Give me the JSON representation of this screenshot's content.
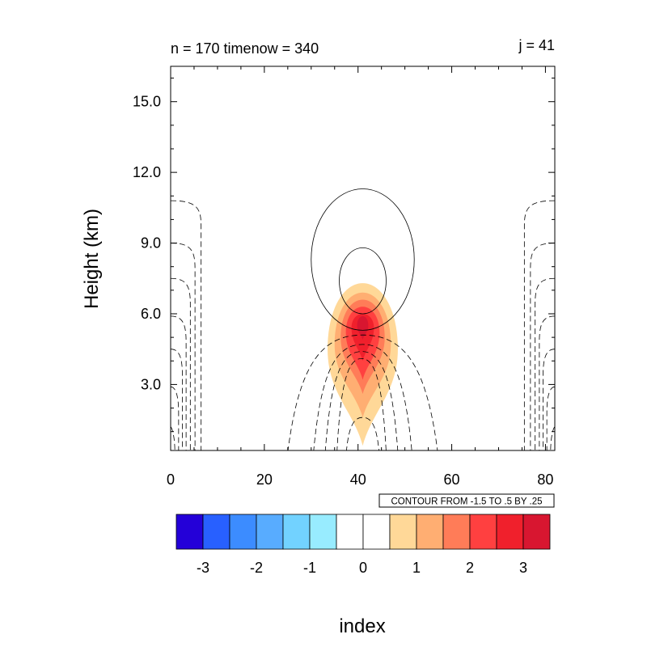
{
  "chart_data": {
    "type": "contour",
    "title_left": "n = 170 timenow = 340",
    "title_right": "j = 41",
    "ylabel": "Height (km)",
    "xlabel": "index",
    "xlim": [
      0,
      82
    ],
    "ylim": [
      0.2,
      16.5
    ],
    "x_ticks": [
      0,
      20,
      40,
      60,
      80
    ],
    "x_tick_labels": [
      "0",
      "20",
      "40",
      "60",
      "80"
    ],
    "y_ticks": [
      3.0,
      6.0,
      9.0,
      12.0,
      15.0
    ],
    "y_tick_labels": [
      "3.0",
      "6.0",
      "9.0",
      "12.0",
      "15.0"
    ],
    "contour_info": "CONTOUR FROM -1.5 TO .5 BY .25",
    "colorbar": {
      "colors": [
        "#2400d8",
        "#2860ff",
        "#3c8cff",
        "#58acff",
        "#72d2ff",
        "#98ecff",
        "#ffffff",
        "#ffffff",
        "#ffd898",
        "#ffae72",
        "#ff7c58",
        "#ff4040",
        "#f0202c",
        "#d81630"
      ],
      "tick_values": [
        -3,
        -2,
        -1,
        0,
        1,
        2,
        3
      ],
      "tick_labels": [
        "-3",
        "-2",
        "-1",
        "0",
        "1",
        "2",
        "3"
      ],
      "min": -3.5,
      "max": 3.5
    },
    "filled_field": {
      "center_x": 41,
      "levels": [
        {
          "value": 0.5,
          "color": "#ffd898",
          "x_halfwidth": 7.5,
          "y_bottom": 0.4,
          "y_top": 7.3,
          "y_peak": 4.5
        },
        {
          "value": 1.0,
          "color": "#ffae72",
          "x_halfwidth": 6.0,
          "y_bottom": 1.6,
          "y_top": 6.9,
          "y_peak": 4.7
        },
        {
          "value": 1.5,
          "color": "#ff7c58",
          "x_halfwidth": 4.7,
          "y_bottom": 2.6,
          "y_top": 6.6,
          "y_peak": 5.0
        },
        {
          "value": 2.0,
          "color": "#ff4040",
          "x_halfwidth": 3.6,
          "y_bottom": 3.2,
          "y_top": 6.3,
          "y_peak": 5.2
        },
        {
          "value": 2.5,
          "color": "#f0202c",
          "x_halfwidth": 2.4,
          "y_bottom": 4.0,
          "y_top": 6.0,
          "y_peak": 5.4
        },
        {
          "value": 3.0,
          "color": "#d81630",
          "x_halfwidth": 1.2,
          "y_bottom": 4.9,
          "y_top": 5.9,
          "y_peak": 5.5
        }
      ]
    },
    "positive_contours": [
      {
        "cx": 41,
        "cy": 8.3,
        "rx": 11.0,
        "ry": 3.0
      },
      {
        "cx": 41,
        "cy": 7.4,
        "rx": 5.0,
        "ry": 1.4
      }
    ],
    "center_dashed_arches": [
      {
        "x_left": 25,
        "x_right": 57,
        "y_top": 5.1
      },
      {
        "x_left": 30.5,
        "x_right": 51.5,
        "y_top": 4.7
      },
      {
        "x_left": 33,
        "x_right": 48.5,
        "y_top": 4.4
      },
      {
        "x_left": 35.5,
        "x_right": 46,
        "y_top": 4.1
      },
      {
        "x_left": 37.5,
        "x_right": 44.5,
        "y_top": 1.6
      }
    ],
    "edge_dashed_contours": [
      {
        "x_base": 6.5,
        "y_top": 10.8
      },
      {
        "x_base": 5.2,
        "y_top": 9.0
      },
      {
        "x_base": 4.2,
        "y_top": 7.5
      },
      {
        "x_base": 3.3,
        "y_top": 5.9
      },
      {
        "x_base": 2.5,
        "y_top": 4.5
      },
      {
        "x_base": 1.7,
        "y_top": 2.9
      },
      {
        "x_base": 0.9,
        "y_top": 1.2
      }
    ]
  }
}
